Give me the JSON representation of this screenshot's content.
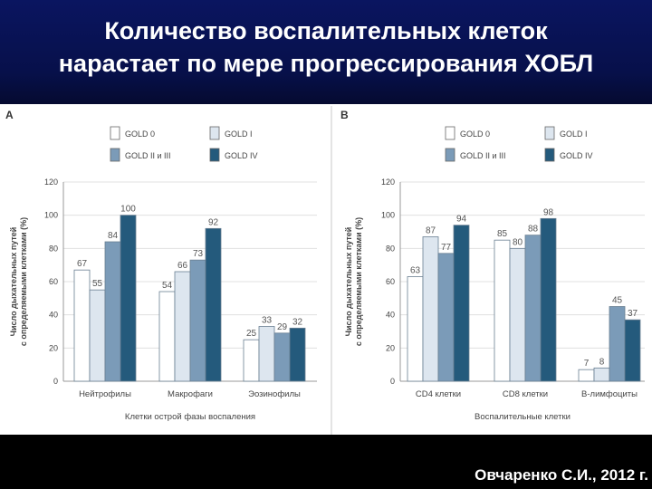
{
  "title": {
    "line1": "Количество воспалительных клеток",
    "line2": "нарастает по мере прогрессирования ХОБЛ"
  },
  "citation": "Овчаренко С.И., 2012 г.",
  "series_colors": [
    "#ffffff",
    "#dde6ef",
    "#7b9bb8",
    "#245a7c"
  ],
  "chart_data": [
    {
      "type": "bar",
      "panel_label": "A",
      "categories": [
        "Нейтрофилы",
        "Макрофаги",
        "Эозинофилы"
      ],
      "series": [
        {
          "name": "GOLD 0",
          "values": [
            67,
            54,
            25
          ]
        },
        {
          "name": "GOLD I",
          "values": [
            55,
            66,
            33
          ]
        },
        {
          "name": "GOLD II и III",
          "values": [
            84,
            73,
            29
          ]
        },
        {
          "name": "GOLD IV",
          "values": [
            100,
            92,
            32
          ]
        }
      ],
      "xlabel": "Клетки острой фазы воспаления",
      "ylabel_line1": "Число дыхательных путей",
      "ylabel_line2": "с определяемыми клетками (%)",
      "yticks": [
        "0",
        "20",
        "40",
        "60",
        "80",
        "100",
        "120"
      ],
      "ylim": [
        0,
        120
      ],
      "legend_position": "top"
    },
    {
      "type": "bar",
      "panel_label": "B",
      "categories": [
        "CD4 клетки",
        "CD8 клетки",
        "B-лимфоциты"
      ],
      "series": [
        {
          "name": "GOLD 0",
          "values": [
            63,
            85,
            7
          ]
        },
        {
          "name": "GOLD I",
          "values": [
            87,
            80,
            8
          ]
        },
        {
          "name": "GOLD II и III",
          "values": [
            77,
            88,
            45
          ]
        },
        {
          "name": "GOLD IV",
          "values": [
            94,
            98,
            37
          ]
        }
      ],
      "xlabel": "Воспалительные клетки",
      "ylabel_line1": "Число дыхательных путей",
      "ylabel_line2": "с определяемыми клетками (%)",
      "yticks": [
        "0",
        "20",
        "40",
        "60",
        "80",
        "100",
        "120"
      ],
      "ylim": [
        0,
        120
      ],
      "legend_position": "top"
    }
  ]
}
